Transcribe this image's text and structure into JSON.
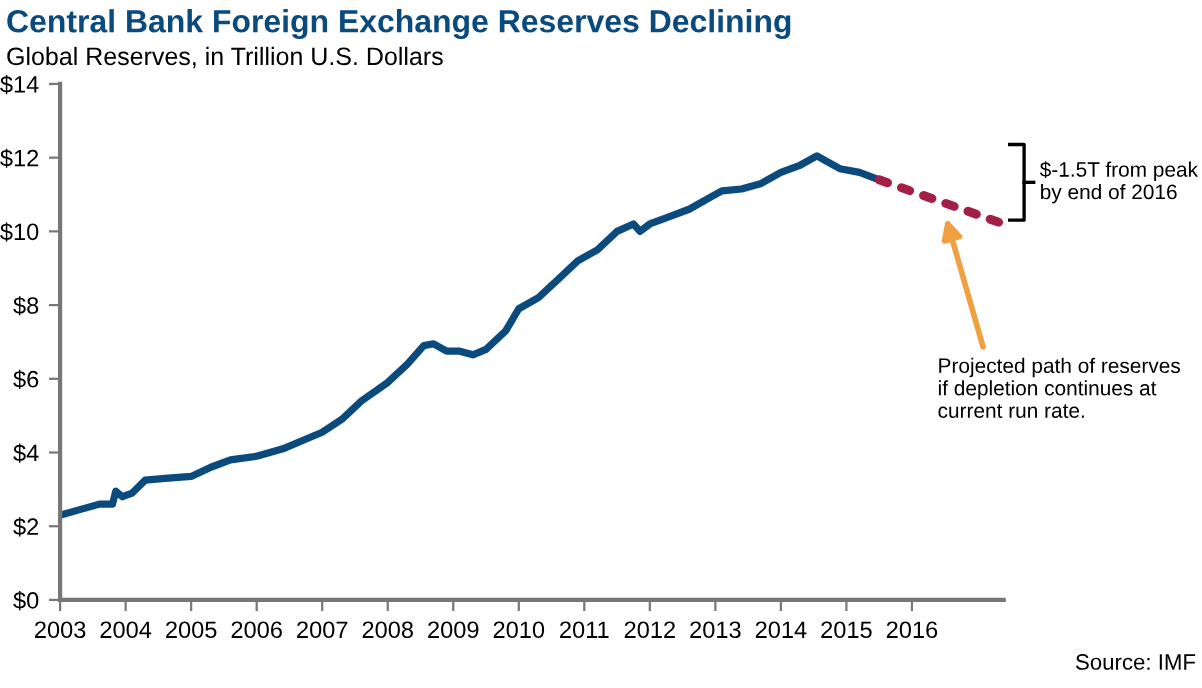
{
  "chart_data": {
    "type": "line",
    "title": "Central Bank Foreign Exchange Reserves Declining",
    "subtitle": "Global Reserves, in Trillion U.S. Dollars",
    "series": [
      {
        "color": "#0b4a7d",
        "line_style": "solid",
        "x": [
          2003.0,
          2003.3,
          2003.6,
          2003.8,
          2003.85,
          2003.95,
          2004.1,
          2004.3,
          2004.6,
          2005.0,
          2005.3,
          2005.6,
          2006.0,
          2006.4,
          2006.8,
          2007.0,
          2007.3,
          2007.6,
          2008.0,
          2008.3,
          2008.55,
          2008.7,
          2008.9,
          2009.1,
          2009.3,
          2009.5,
          2009.8,
          2010.0,
          2010.3,
          2010.6,
          2010.9,
          2011.2,
          2011.5,
          2011.75,
          2011.85,
          2012.0,
          2012.3,
          2012.6,
          2012.9,
          2013.1,
          2013.4,
          2013.7,
          2014.0,
          2014.3,
          2014.55,
          2014.7,
          2014.9,
          2015.2,
          2015.5
        ],
        "values": [
          2.3,
          2.45,
          2.6,
          2.6,
          2.95,
          2.8,
          2.9,
          3.25,
          3.3,
          3.35,
          3.6,
          3.8,
          3.9,
          4.1,
          4.4,
          4.55,
          4.9,
          5.4,
          5.9,
          6.4,
          6.9,
          6.95,
          6.75,
          6.75,
          6.65,
          6.8,
          7.3,
          7.9,
          8.2,
          8.7,
          9.2,
          9.5,
          10.0,
          10.2,
          10.0,
          10.2,
          10.4,
          10.6,
          10.9,
          11.1,
          11.15,
          11.3,
          11.6,
          11.8,
          12.05,
          11.9,
          11.7,
          11.6,
          11.4
        ]
      },
      {
        "color": "#a31f45",
        "line_style": "dotted",
        "x": [
          2015.5,
          2017.4
        ],
        "values": [
          11.4,
          10.2
        ]
      }
    ],
    "xlim": [
      2003,
      2017.4
    ],
    "xticks": [
      2003,
      2004,
      2005,
      2006,
      2007,
      2008,
      2009,
      2010,
      2011,
      2012,
      2013,
      2014,
      2015,
      2016
    ],
    "ylim": [
      0,
      14
    ],
    "yticks": [
      {
        "value": 0,
        "label": "$0"
      },
      {
        "value": 2,
        "label": "$2"
      },
      {
        "value": 4,
        "label": "$4"
      },
      {
        "value": 6,
        "label": "$6"
      },
      {
        "value": 8,
        "label": "$8"
      },
      {
        "value": 10,
        "label": "$10"
      },
      {
        "value": 12,
        "label": "$12"
      },
      {
        "value": 14,
        "label": "$14"
      }
    ],
    "grid": false,
    "legend": false,
    "annotations": [
      "$-1.5T from peak\nby end of 2016",
      "Projected path of reserves\nif depletion continues at\ncurrent run rate.",
      "Source: IMF"
    ]
  }
}
